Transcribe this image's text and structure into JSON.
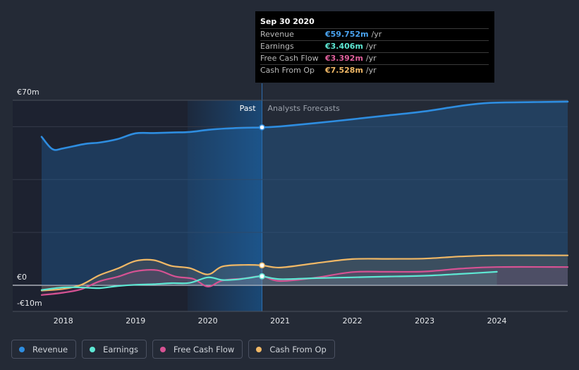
{
  "tooltip": {
    "date": "Sep 30 2020",
    "rows": [
      {
        "label": "Revenue",
        "value": "€59.752m",
        "unit": "/yr",
        "color": "#4aa3ef"
      },
      {
        "label": "Earnings",
        "value": "€3.406m",
        "unit": "/yr",
        "color": "#5ee8d4"
      },
      {
        "label": "Free Cash Flow",
        "value": "€3.392m",
        "unit": "/yr",
        "color": "#e0609c"
      },
      {
        "label": "Cash From Op",
        "value": "€7.528m",
        "unit": "/yr",
        "color": "#f0b866"
      }
    ]
  },
  "section_labels": {
    "past": "Past",
    "forecast": "Analysts Forecasts"
  },
  "legend": [
    {
      "label": "Revenue",
      "color": "#2e8de0"
    },
    {
      "label": "Earnings",
      "color": "#5ee8d4"
    },
    {
      "label": "Free Cash Flow",
      "color": "#d65293"
    },
    {
      "label": "Cash From Op",
      "color": "#f0b866"
    }
  ],
  "chart_data": {
    "type": "line",
    "title": "",
    "xlabel": "",
    "ylabel": "",
    "ylim": [
      -10,
      70
    ],
    "xlim": [
      2017.3,
      2024.98
    ],
    "y_tick_labels": [
      {
        "value": 70,
        "label": "€70m"
      },
      {
        "value": 0,
        "label": "€0"
      },
      {
        "value": -10,
        "label": "-€10m"
      }
    ],
    "gridlines": [
      60,
      40,
      20,
      0
    ],
    "x_ticks": [
      2018,
      2019,
      2020,
      2021,
      2022,
      2023,
      2024
    ],
    "highlight_start": 2019.72,
    "past_end": 2020.75,
    "series": [
      {
        "name": "Revenue",
        "color": "#2e8de0",
        "x": [
          2017.7,
          2017.85,
          2018.0,
          2018.3,
          2018.5,
          2018.75,
          2019.0,
          2019.25,
          2019.5,
          2019.75,
          2020.0,
          2020.25,
          2020.5,
          2020.75,
          2021.0,
          2021.5,
          2022.0,
          2022.5,
          2023.0,
          2023.5,
          2023.9,
          2024.5,
          2024.98
        ],
        "y": [
          56.2,
          51.5,
          51.8,
          53.5,
          54.0,
          55.3,
          57.5,
          57.6,
          57.8,
          58.0,
          58.8,
          59.3,
          59.6,
          59.752,
          60.1,
          61.4,
          62.8,
          64.3,
          65.8,
          67.9,
          69.0,
          69.3,
          69.5
        ]
      },
      {
        "name": "Earnings",
        "color": "#5ee8d4",
        "x": [
          2017.7,
          2018.0,
          2018.25,
          2018.5,
          2018.75,
          2019.0,
          2019.25,
          2019.5,
          2019.75,
          2020.0,
          2020.2,
          2020.4,
          2020.6,
          2020.75,
          2021.0,
          2021.5,
          2022.0,
          2022.5,
          2023.0,
          2023.5,
          2024.0
        ],
        "y": [
          -1.8,
          -0.8,
          -0.8,
          -1.1,
          -0.3,
          0.2,
          0.4,
          0.8,
          0.9,
          3.0,
          2.0,
          2.2,
          2.9,
          3.406,
          2.3,
          2.7,
          3.0,
          3.3,
          3.6,
          4.3,
          5.1
        ]
      },
      {
        "name": "Free Cash Flow",
        "color": "#d65293",
        "x": [
          2017.7,
          2018.0,
          2018.25,
          2018.5,
          2018.75,
          2019.0,
          2019.3,
          2019.55,
          2019.8,
          2020.0,
          2020.2,
          2020.5,
          2020.75,
          2021.0,
          2021.5,
          2022.0,
          2022.5,
          2023.0,
          2023.5,
          2024.0,
          2024.98
        ],
        "y": [
          -3.7,
          -2.8,
          -1.5,
          1.5,
          3.2,
          5.3,
          5.7,
          3.3,
          2.4,
          -0.5,
          1.8,
          2.6,
          3.392,
          1.6,
          2.9,
          5.0,
          5.1,
          5.2,
          6.3,
          6.9,
          6.9
        ]
      },
      {
        "name": "Cash From Op",
        "color": "#f0b866",
        "x": [
          2017.7,
          2018.0,
          2018.25,
          2018.5,
          2018.75,
          2019.0,
          2019.25,
          2019.5,
          2019.75,
          2020.0,
          2020.2,
          2020.5,
          2020.75,
          2021.0,
          2021.5,
          2022.0,
          2022.5,
          2023.0,
          2023.5,
          2024.0,
          2024.98
        ],
        "y": [
          -2.0,
          -1.4,
          0.2,
          3.8,
          6.3,
          9.2,
          9.5,
          7.3,
          6.5,
          4.1,
          7.1,
          7.7,
          7.528,
          6.7,
          8.4,
          9.9,
          10.0,
          10.1,
          10.9,
          11.3,
          11.3
        ]
      }
    ]
  }
}
